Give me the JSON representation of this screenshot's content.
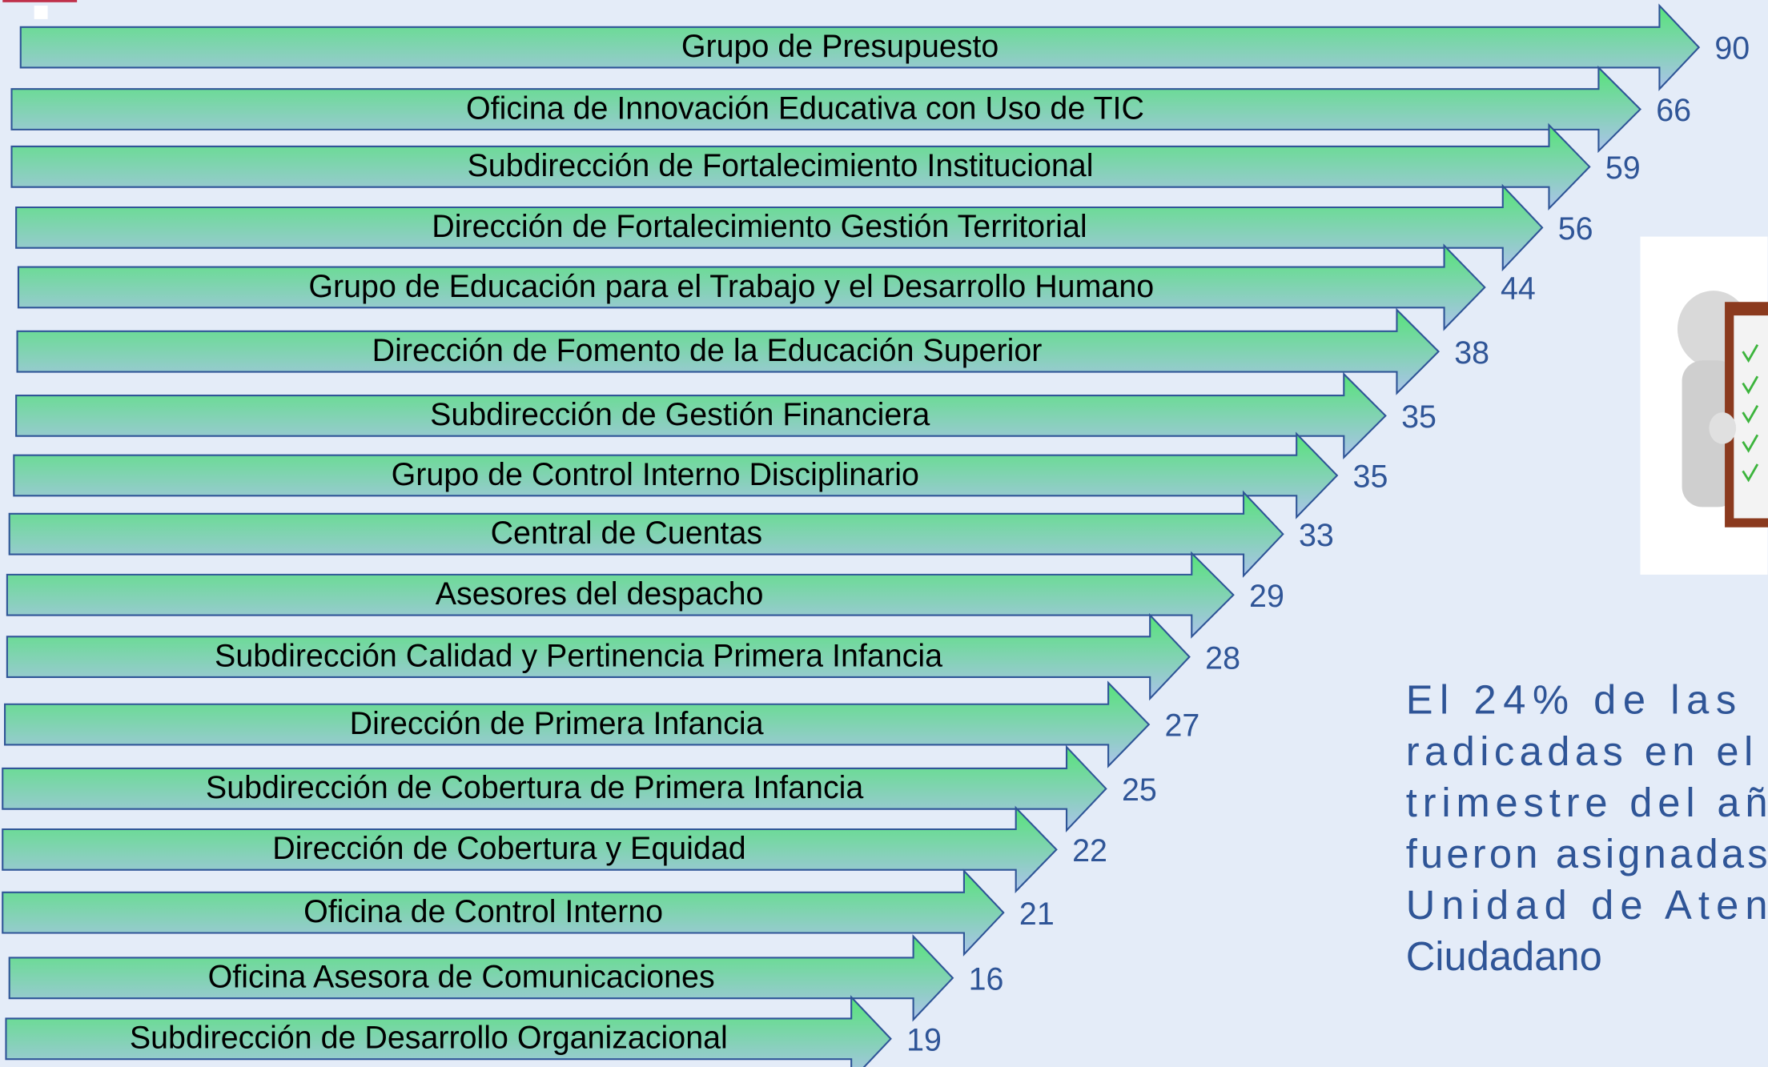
{
  "items": [
    {
      "label": "Grupo de Presupuesto",
      "value": 90
    },
    {
      "label": "Oficina de Innovación Educativa con Uso de TIC",
      "value": 66
    },
    {
      "label": "Subdirección de Fortalecimiento Institucional",
      "value": 59
    },
    {
      "label": "Dirección de Fortalecimiento Gestión Territorial",
      "value": 56
    },
    {
      "label": "Grupo de Educación para el Trabajo y el Desarrollo Humano",
      "value": 44
    },
    {
      "label": "Dirección de Fomento de la Educación Superior",
      "value": 38
    },
    {
      "label": "Subdirección de Gestión Financiera",
      "value": 35
    },
    {
      "label": "Grupo de Control Interno Disciplinario",
      "value": 35
    },
    {
      "label": "Central de Cuentas",
      "value": 33
    },
    {
      "label": "Asesores del despacho",
      "value": 29
    },
    {
      "label": "Subdirección Calidad y Pertinencia Primera Infancia",
      "value": 28
    },
    {
      "label": "Dirección de Primera Infancia",
      "value": 27
    },
    {
      "label": "Subdirección de Cobertura de Primera Infancia",
      "value": 25
    },
    {
      "label": "Dirección de Cobertura y Equidad",
      "value": 22
    },
    {
      "label": "Oficina de Control Interno",
      "value": 21
    },
    {
      "label": "Oficina Asesora de Comunicaciones",
      "value": 16
    },
    {
      "label": "Subdirección de Desarrollo Organizacional",
      "value": 19
    }
  ],
  "note": {
    "lines": [
      "El 24% de las",
      "radicadas en el",
      "trimestre del añ",
      "fueron asignadas",
      "Unidad de Aten",
      "Ciudadano"
    ]
  }
}
